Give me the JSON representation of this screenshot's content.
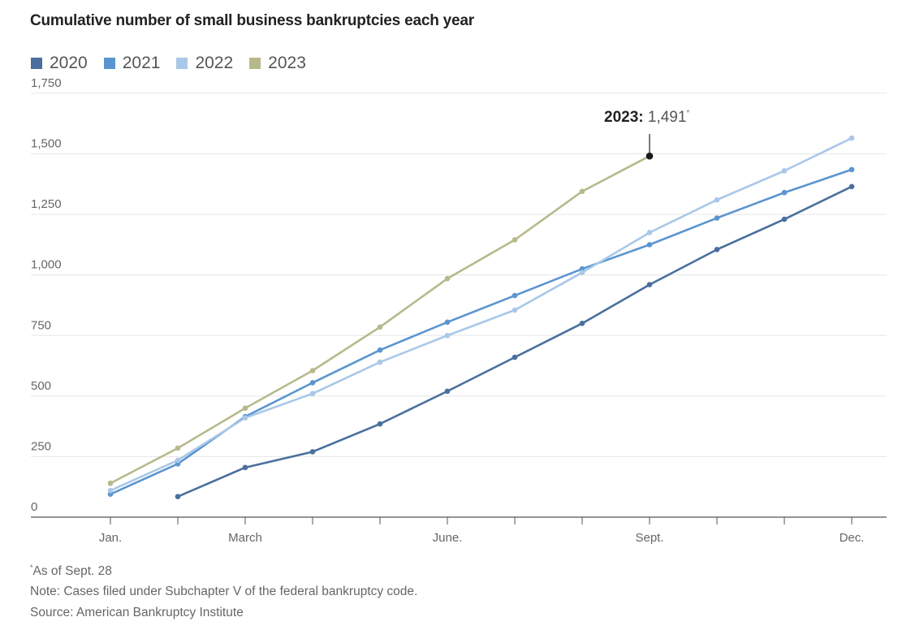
{
  "title": "Cumulative number of small business bankruptcies each year",
  "footnotes": {
    "asof_marker": "*",
    "asof": "As of Sept. 28",
    "note": "Note: Cases filed under Subchapter V of the federal bankruptcy code.",
    "source": "Source: American Bankruptcy Institute"
  },
  "chart_data": {
    "type": "line",
    "title": "Cumulative number of small business bankruptcies each year",
    "xlabel": "",
    "ylabel": "",
    "x": [
      1,
      2,
      3,
      4,
      5,
      6,
      7,
      8,
      9,
      10,
      11,
      12
    ],
    "xticks": [
      {
        "x": 1,
        "label": "Jan."
      },
      {
        "x": 3,
        "label": "March"
      },
      {
        "x": 6,
        "label": "June."
      },
      {
        "x": 9,
        "label": "Sept."
      },
      {
        "x": 12,
        "label": "Dec."
      }
    ],
    "xlim": [
      0.3,
      12.5
    ],
    "ylim": [
      0,
      1800
    ],
    "yticks": [
      {
        "value": 0,
        "label": "0"
      },
      {
        "value": 250,
        "label": "250"
      },
      {
        "value": 500,
        "label": "500"
      },
      {
        "value": 750,
        "label": "750"
      },
      {
        "value": 1000,
        "label": "1,000"
      },
      {
        "value": 1250,
        "label": "1,250"
      },
      {
        "value": 1500,
        "label": "1,500"
      },
      {
        "value": 1750,
        "label": "1,750"
      }
    ],
    "grid": true,
    "legend_position": "top-left",
    "series": [
      {
        "name": "2020",
        "color": "#4a6f9e",
        "values": [
          null,
          85,
          205,
          270,
          385,
          520,
          660,
          800,
          960,
          1105,
          1230,
          1365
        ]
      },
      {
        "name": "2021",
        "color": "#5b95d0",
        "values": [
          95,
          220,
          415,
          555,
          690,
          805,
          915,
          1025,
          1125,
          1235,
          1340,
          1435
        ]
      },
      {
        "name": "2022",
        "color": "#a9c8e8",
        "values": [
          110,
          235,
          410,
          510,
          640,
          750,
          855,
          1010,
          1175,
          1310,
          1430,
          1565
        ]
      },
      {
        "name": "2023",
        "color": "#b7b98b",
        "values": [
          140,
          285,
          450,
          605,
          785,
          985,
          1145,
          1345,
          1491,
          null,
          null,
          null
        ]
      }
    ],
    "annotation": {
      "series": "2023",
      "label": "2023:",
      "value_text": "1,491",
      "marker": "*",
      "x": 9,
      "y": 1491
    }
  }
}
